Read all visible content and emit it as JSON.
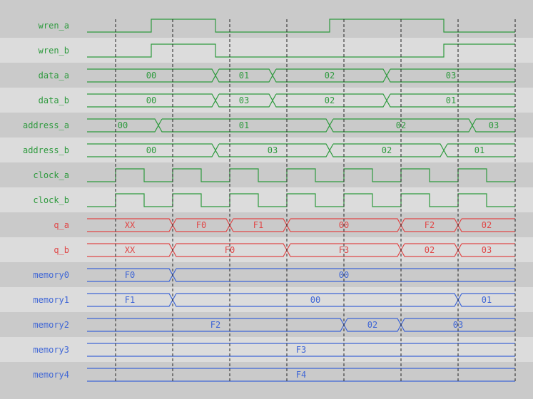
{
  "colors": {
    "green": "#2e9a3e",
    "red": "#e04848",
    "blue": "#3f66d6",
    "row_dark": "#cacaca",
    "row_light": "#dcdcdc",
    "grid": "#222222"
  },
  "time_end": 15,
  "grid_times": [
    1,
    3,
    5,
    7,
    9,
    11,
    13,
    15
  ],
  "signals": [
    {
      "name": "wren_a",
      "type": "bit",
      "color": "green",
      "start": 0,
      "edges": [
        2.25,
        4.5,
        8.5,
        12.5
      ]
    },
    {
      "name": "wren_b",
      "type": "bit",
      "color": "green",
      "start": 0,
      "edges": [
        2.25,
        4.5,
        12.5
      ]
    },
    {
      "name": "data_a",
      "type": "bus",
      "color": "green",
      "segments": [
        {
          "t0": 0,
          "t1": 4.5,
          "value": "00"
        },
        {
          "t0": 4.5,
          "t1": 6.5,
          "value": "01"
        },
        {
          "t0": 6.5,
          "t1": 10.5,
          "value": "02"
        },
        {
          "t0": 10.5,
          "t1": 15,
          "value": "03"
        }
      ]
    },
    {
      "name": "data_b",
      "type": "bus",
      "color": "green",
      "segments": [
        {
          "t0": 0,
          "t1": 4.5,
          "value": "00"
        },
        {
          "t0": 4.5,
          "t1": 6.5,
          "value": "03"
        },
        {
          "t0": 6.5,
          "t1": 10.5,
          "value": "02"
        },
        {
          "t0": 10.5,
          "t1": 15,
          "value": "01"
        }
      ]
    },
    {
      "name": "address_a",
      "type": "bus",
      "color": "green",
      "segments": [
        {
          "t0": 0,
          "t1": 2.5,
          "value": "00"
        },
        {
          "t0": 2.5,
          "t1": 8.5,
          "value": "01"
        },
        {
          "t0": 8.5,
          "t1": 13.5,
          "value": "02"
        },
        {
          "t0": 13.5,
          "t1": 15,
          "value": "03"
        }
      ]
    },
    {
      "name": "address_b",
      "type": "bus",
      "color": "green",
      "segments": [
        {
          "t0": 0,
          "t1": 4.5,
          "value": "00"
        },
        {
          "t0": 4.5,
          "t1": 8.5,
          "value": "03"
        },
        {
          "t0": 8.5,
          "t1": 12.5,
          "value": "02"
        },
        {
          "t0": 12.5,
          "t1": 15,
          "value": "01"
        }
      ]
    },
    {
      "name": "clock_a",
      "type": "bit",
      "color": "green",
      "start": 0,
      "edges": [
        1,
        2,
        3,
        4,
        5,
        6,
        7,
        8,
        9,
        10,
        11,
        12,
        13,
        14
      ]
    },
    {
      "name": "clock_b",
      "type": "bit",
      "color": "green",
      "start": 0,
      "edges": [
        1,
        2,
        3,
        4,
        5,
        6,
        7,
        8,
        9,
        10,
        11,
        12,
        13,
        14
      ]
    },
    {
      "name": "q_a",
      "type": "bus",
      "color": "red",
      "segments": [
        {
          "t0": 0,
          "t1": 3,
          "value": "XX"
        },
        {
          "t0": 3,
          "t1": 5,
          "value": "F0"
        },
        {
          "t0": 5,
          "t1": 7,
          "value": "F1"
        },
        {
          "t0": 7,
          "t1": 11,
          "value": "00"
        },
        {
          "t0": 11,
          "t1": 13,
          "value": "F2"
        },
        {
          "t0": 13,
          "t1": 15,
          "value": "02"
        }
      ]
    },
    {
      "name": "q_b",
      "type": "bus",
      "color": "red",
      "segments": [
        {
          "t0": 0,
          "t1": 3,
          "value": "XX"
        },
        {
          "t0": 3,
          "t1": 7,
          "value": "F0"
        },
        {
          "t0": 7,
          "t1": 11,
          "value": "F3"
        },
        {
          "t0": 11,
          "t1": 13,
          "value": "02"
        },
        {
          "t0": 13,
          "t1": 15,
          "value": "03"
        }
      ]
    },
    {
      "name": "memory0",
      "type": "bus",
      "color": "blue",
      "segments": [
        {
          "t0": 0,
          "t1": 3,
          "value": "F0"
        },
        {
          "t0": 3,
          "t1": 15,
          "value": "00"
        }
      ]
    },
    {
      "name": "memory1",
      "type": "bus",
      "color": "blue",
      "segments": [
        {
          "t0": 0,
          "t1": 3,
          "value": "F1"
        },
        {
          "t0": 3,
          "t1": 13,
          "value": "00"
        },
        {
          "t0": 13,
          "t1": 15,
          "value": "01"
        }
      ]
    },
    {
      "name": "memory2",
      "type": "bus",
      "color": "blue",
      "segments": [
        {
          "t0": 0,
          "t1": 9,
          "value": "F2"
        },
        {
          "t0": 9,
          "t1": 11,
          "value": "02"
        },
        {
          "t0": 11,
          "t1": 15,
          "value": "03"
        }
      ]
    },
    {
      "name": "memory3",
      "type": "bus",
      "color": "blue",
      "segments": [
        {
          "t0": 0,
          "t1": 15,
          "value": "F3"
        }
      ]
    },
    {
      "name": "memory4",
      "type": "bus",
      "color": "blue",
      "segments": [
        {
          "t0": 0,
          "t1": 15,
          "value": "F4"
        }
      ]
    }
  ]
}
